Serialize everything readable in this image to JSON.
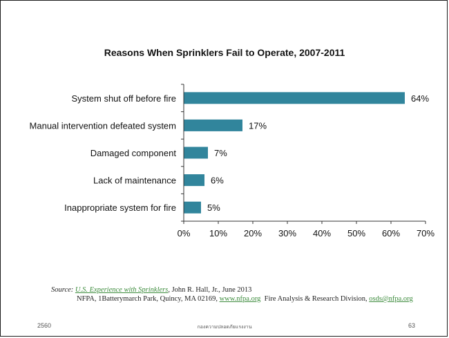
{
  "chart_data": {
    "type": "bar",
    "orientation": "horizontal",
    "title": "Reasons When Sprinklers Fail to Operate, 2007-2011",
    "categories": [
      "System shut off before fire",
      "Manual intervention defeated system",
      "Damaged component",
      "Lack of maintenance",
      "Inappropriate system for fire"
    ],
    "values": [
      64,
      17,
      7,
      6,
      5
    ],
    "value_labels": [
      "64%",
      "17%",
      "7%",
      "6%",
      "5%"
    ],
    "xlim": [
      0,
      70
    ],
    "x_ticks": [
      0,
      10,
      20,
      30,
      40,
      50,
      60,
      70
    ],
    "x_tick_labels": [
      "0%",
      "10%",
      "20%",
      "30%",
      "40%",
      "50%",
      "60%",
      "70%"
    ],
    "bar_color": "#31859c",
    "grid": false,
    "legend": "none"
  },
  "source": {
    "label": "Source:",
    "link_text": "U.S. Experience with Sprinklers",
    "author_date": ", John R. Hall, Jr., June 2013",
    "line2_prefix": "NFPA, 1Batterymarch Park, Quincy, MA 02169, ",
    "website": "www.nfpa.org",
    "division": "  Fire Analysis & Research Division, ",
    "email": "osds@nfpa.org"
  },
  "footer": {
    "left": "2560",
    "center": "กองความปลอดภัยแรงงาน",
    "right": "63"
  }
}
